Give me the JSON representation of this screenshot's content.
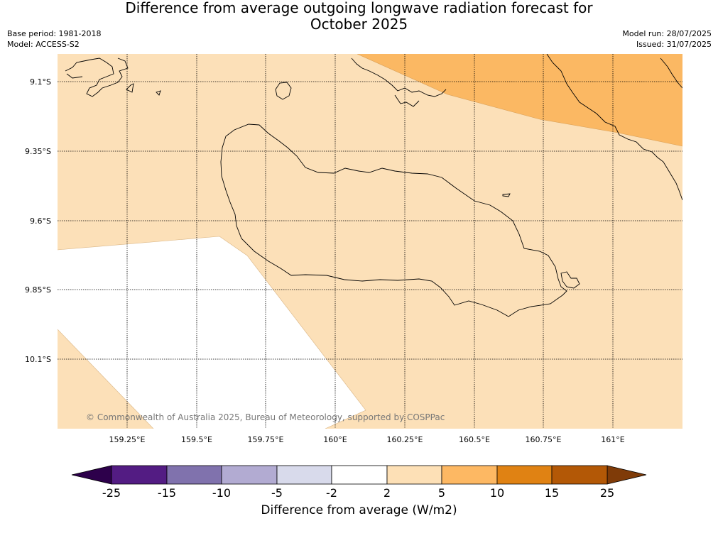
{
  "header": {
    "title_line1": "Difference from average outgoing longwave radiation forecast for",
    "title_line2": "October 2025",
    "base_period": "Base period: 1981-2018",
    "model": "Model: ACCESS-S2",
    "model_run": "Model run: 28/07/2025",
    "issued": "Issued: 31/07/2025"
  },
  "map": {
    "lat_labels": [
      "9.1°S",
      "9.35°S",
      "9.6°S",
      "9.85°S",
      "10.1°S"
    ],
    "lon_labels": [
      "159.25°E",
      "159.5°E",
      "159.75°E",
      "160°E",
      "160.25°E",
      "160.5°E",
      "160.75°E",
      "161°E"
    ],
    "credit": "© Commonwealth of Australia 2025, Bureau of Meteorology, supported by COSPPac",
    "fill_colors": {
      "band_2_5": "#fce0b8",
      "band_5_10": "#fbb863",
      "band_-2_2": "#ffffff"
    }
  },
  "colorbar": {
    "label": "Difference from average (W/m2)",
    "ticks": [
      "-25",
      "-15",
      "-10",
      "-5",
      "-2",
      "2",
      "5",
      "10",
      "15",
      "25"
    ],
    "colors": [
      "#531c83",
      "#8072ad",
      "#b2abd2",
      "#d8daeb",
      "#ffffff",
      "#fde0b6",
      "#fdb863",
      "#e08213",
      "#b35806"
    ],
    "under_color": "#2d004b",
    "over_color": "#7f3b08"
  }
}
